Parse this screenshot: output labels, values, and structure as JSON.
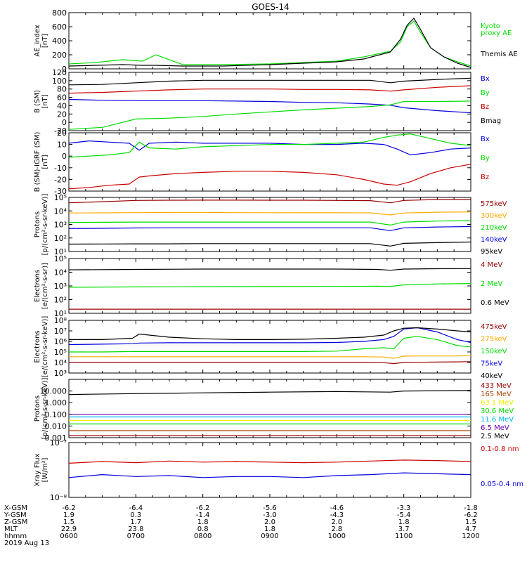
{
  "title": "GOES-14",
  "colors": {
    "black": "#000000",
    "green": "#00dd00",
    "red": "#cc0000",
    "blue": "#0000dd",
    "darkred": "#990000",
    "orange": "#ffaa00",
    "yellow": "#eeee00",
    "cyan": "#00bbee",
    "purple": "#6600aa",
    "brown": "#aa4400"
  },
  "footer": {
    "rows": [
      {
        "label": "X-GSM",
        "values": [
          "-6.2",
          "-6.4",
          "-6.2",
          "-5.6",
          "-4.6",
          "-3.3",
          "-1.8"
        ]
      },
      {
        "label": "Y-GSM",
        "values": [
          "1.9",
          "0.3",
          "-1.4",
          "-3.0",
          "-4.3",
          "-5.4",
          "-6.2"
        ]
      },
      {
        "label": "Z-GSM",
        "values": [
          "1.5",
          "1.7",
          "1.8",
          "2.0",
          "2.0",
          "1.8",
          "1.5"
        ]
      },
      {
        "label": "MLT",
        "values": [
          "22.9",
          "23.8",
          "0.8",
          "1.8",
          "2.8",
          "3.7",
          "4.7"
        ]
      },
      {
        "label": "hhmm",
        "values": [
          "0600",
          "0700",
          "0800",
          "0900",
          "1000",
          "1100",
          "1200"
        ]
      }
    ],
    "date": "2019 Aug 13"
  },
  "chart_data": [
    {
      "type": "line",
      "id": "ae",
      "ylabel": [
        "AE_index",
        "[nT]"
      ],
      "ylim": [
        0,
        800
      ],
      "yscale": "linear",
      "yticks": [
        0,
        200,
        400,
        600,
        800
      ],
      "ytick_labels": [
        "0",
        "200",
        "400",
        "600",
        "800"
      ],
      "x": [
        6.0,
        6.4,
        6.8,
        7.1,
        7.3,
        7.7,
        8.3,
        9.0,
        9.5,
        10.0,
        10.4,
        10.8,
        10.95,
        11.05,
        11.15,
        11.25,
        11.4,
        11.6,
        11.8,
        12.0
      ],
      "series": [
        {
          "name": "Kyoto\nproxy AE",
          "legend": [
            "Kyoto",
            "proxy AE"
          ],
          "color": "#00dd00",
          "values": [
            70,
            90,
            130,
            110,
            200,
            60,
            60,
            70,
            90,
            110,
            170,
            250,
            380,
            600,
            680,
            520,
            300,
            170,
            100,
            40
          ]
        },
        {
          "name": "Themis AE",
          "legend": [
            "Themis AE"
          ],
          "color": "#000000",
          "values": [
            40,
            50,
            60,
            50,
            50,
            40,
            40,
            60,
            80,
            100,
            140,
            240,
            420,
            620,
            720,
            560,
            300,
            170,
            80,
            20
          ]
        }
      ]
    },
    {
      "type": "line",
      "id": "b_sm",
      "ylabel": [
        "B (SM)",
        "[nT]"
      ],
      "ylim": [
        -20,
        120
      ],
      "yscale": "linear",
      "yticks": [
        -20,
        0,
        20,
        40,
        60,
        80,
        100,
        120
      ],
      "ytick_labels": [
        "-20",
        "0",
        "20",
        "40",
        "60",
        "80",
        "100",
        "120"
      ],
      "x": [
        6.0,
        6.5,
        7.0,
        7.5,
        8.0,
        8.5,
        9.0,
        9.5,
        10.0,
        10.5,
        10.8,
        11.0,
        11.5,
        12.0
      ],
      "series": [
        {
          "name": "Bx",
          "legend": [
            "Bx"
          ],
          "color": "#0000dd",
          "values": [
            55,
            53,
            52,
            52,
            52,
            51,
            50,
            48,
            47,
            44,
            41,
            35,
            28,
            23
          ]
        },
        {
          "name": "By",
          "legend": [
            "By"
          ],
          "color": "#00dd00",
          "values": [
            -17,
            -12,
            8,
            10,
            14,
            20,
            25,
            30,
            34,
            38,
            42,
            50,
            50,
            51
          ]
        },
        {
          "name": "Bz",
          "legend": [
            "Bz"
          ],
          "color": "#cc0000",
          "values": [
            70,
            72,
            75,
            78,
            80,
            80,
            80,
            79,
            79,
            78,
            75,
            78,
            84,
            88
          ]
        },
        {
          "name": "Bmag",
          "legend": [
            "Bmag"
          ],
          "color": "#000000",
          "values": [
            90,
            91,
            95,
            99,
            101,
            101,
            101,
            101,
            101,
            101,
            95,
            99,
            103,
            106
          ]
        }
      ]
    },
    {
      "type": "line",
      "id": "b_igrf",
      "ylabel": [
        "B (SM)-IGRF (SM)",
        "[nT]"
      ],
      "ylim": [
        -30,
        20
      ],
      "yscale": "linear",
      "yticks": [
        -30,
        -20,
        -10,
        0,
        10,
        20
      ],
      "ytick_labels": [
        "-30",
        "-20",
        "-10",
        "0",
        "10",
        "20"
      ],
      "x": [
        6.0,
        6.3,
        6.6,
        6.9,
        7.05,
        7.2,
        7.6,
        8.0,
        8.5,
        9.0,
        9.5,
        10.0,
        10.4,
        10.7,
        10.9,
        11.1,
        11.4,
        11.7,
        12.0
      ],
      "series": [
        {
          "name": "Bx",
          "legend": [
            "Bx"
          ],
          "color": "#0000dd",
          "values": [
            11,
            13,
            12,
            11,
            5,
            11,
            12,
            11,
            11,
            11,
            10,
            10,
            11,
            10,
            6,
            1,
            3,
            6,
            7
          ]
        },
        {
          "name": "By",
          "legend": [
            "By"
          ],
          "color": "#00dd00",
          "values": [
            -1,
            0,
            1,
            3,
            12,
            7,
            6,
            8,
            9,
            10,
            10,
            11,
            12,
            16,
            18,
            19,
            15,
            11,
            9
          ]
        },
        {
          "name": "Bz",
          "legend": [
            "Bz"
          ],
          "color": "#cc0000",
          "values": [
            -28,
            -27,
            -25,
            -24,
            -18,
            -17,
            -15,
            -14,
            -13,
            -13,
            -14,
            -16,
            -20,
            -24,
            -25,
            -22,
            -15,
            -10,
            -7
          ]
        }
      ]
    },
    {
      "type": "line",
      "id": "protons_low",
      "ylabel": [
        "Protons",
        "[p/(cm²-s-sr-keV)]"
      ],
      "ylim": [
        10,
        100000
      ],
      "yscale": "log",
      "yticks": [
        10,
        100,
        1000,
        10000,
        100000
      ],
      "ytick_labels": [
        "10¹",
        "10²",
        "10³",
        "10⁴",
        "10⁵"
      ],
      "x": [
        6.0,
        6.5,
        7.0,
        7.5,
        8.0,
        8.5,
        9.0,
        9.5,
        10.0,
        10.5,
        10.8,
        11.0,
        11.5,
        12.0
      ],
      "series": [
        {
          "name": "575keV",
          "legend": [
            "575keV"
          ],
          "color": "#990000",
          "values": [
            40000,
            48000,
            60000,
            62000,
            63000,
            63000,
            62000,
            62000,
            60000,
            58000,
            40000,
            60000,
            70000,
            70000
          ]
        },
        {
          "name": "300keV",
          "legend": [
            "300keV"
          ],
          "color": "#ffaa00",
          "values": [
            7000,
            7200,
            7500,
            7600,
            7600,
            7500,
            7400,
            7300,
            7300,
            7200,
            5000,
            7000,
            8000,
            8500
          ]
        },
        {
          "name": "210keV",
          "legend": [
            "210keV"
          ],
          "color": "#00dd00",
          "values": [
            1400,
            1450,
            1500,
            1500,
            1500,
            1500,
            1500,
            1500,
            1500,
            1500,
            900,
            1500,
            1800,
            1900
          ]
        },
        {
          "name": "140keV",
          "legend": [
            "140keV"
          ],
          "color": "#0000dd",
          "values": [
            500,
            520,
            550,
            560,
            560,
            560,
            560,
            560,
            560,
            560,
            350,
            560,
            650,
            700
          ]
        },
        {
          "name": "95keV",
          "legend": [
            "95keV"
          ],
          "color": "#000000",
          "values": [
            35,
            36,
            37,
            37,
            38,
            38,
            38,
            38,
            38,
            38,
            25,
            40,
            45,
            50
          ]
        }
      ]
    },
    {
      "type": "line",
      "id": "electrons_mev",
      "ylabel": [
        "Electrons",
        "[e/(cm²-s-sr)]"
      ],
      "ylim": [
        10,
        100000
      ],
      "yscale": "log",
      "yticks": [
        10,
        100,
        1000,
        10000,
        100000
      ],
      "ytick_labels": [
        "10¹",
        "10²",
        "10³",
        "10⁴",
        "10⁵"
      ],
      "x": [
        6.0,
        7.0,
        8.0,
        9.0,
        10.0,
        10.6,
        10.8,
        11.0,
        11.5,
        12.0
      ],
      "series": [
        {
          "name": "4 MeV",
          "legend": [
            "4 MeV"
          ],
          "color": "#990000",
          "values": [
            20,
            20,
            20,
            20,
            20,
            20,
            20,
            20,
            20,
            20
          ]
        },
        {
          "name": "2 MeV",
          "legend": [
            "2 MeV"
          ],
          "color": "#00dd00",
          "values": [
            800,
            850,
            880,
            900,
            920,
            950,
            900,
            1200,
            1400,
            1500
          ]
        },
        {
          "name": "0.6 MeV",
          "legend": [
            "0.6 MeV"
          ],
          "color": "#000000",
          "values": [
            15000,
            16000,
            17000,
            17000,
            17000,
            16000,
            14000,
            17000,
            18000,
            18500
          ]
        }
      ]
    },
    {
      "type": "line",
      "id": "electrons_kev",
      "ylabel": [
        "Electrons",
        "[e/(cm²-s-sr-keV)]"
      ],
      "ylim": [
        1000,
        100000000
      ],
      "yscale": "log",
      "yticks": [
        1000,
        10000,
        100000,
        1000000,
        10000000,
        100000000
      ],
      "ytick_labels": [
        "10³",
        "10⁴",
        "10⁵",
        "10⁶",
        "10⁷",
        "10⁸"
      ],
      "x": [
        6.0,
        6.5,
        6.95,
        7.05,
        7.5,
        8.0,
        8.5,
        9.0,
        9.5,
        10.0,
        10.4,
        10.7,
        10.85,
        11.0,
        11.2,
        11.5,
        11.8,
        12.0
      ],
      "series": [
        {
          "name": "475keV",
          "legend": [
            "475keV"
          ],
          "color": "#990000",
          "values": [
            10000,
            10000,
            10000,
            10000,
            10000,
            10000,
            10000,
            10000,
            10000,
            10000,
            10000,
            9500,
            8000,
            10000,
            10500,
            11000,
            11500,
            12000
          ]
        },
        {
          "name": "275keV",
          "legend": [
            "275keV"
          ],
          "color": "#ffaa00",
          "values": [
            35000,
            35000,
            35000,
            35000,
            35000,
            35000,
            35000,
            35000,
            35000,
            35000,
            35000,
            33000,
            25000,
            40000,
            42000,
            42000,
            42000,
            45000
          ]
        },
        {
          "name": "150keV",
          "legend": [
            "150keV"
          ],
          "color": "#00dd00",
          "values": [
            100000,
            100000,
            110000,
            110000,
            110000,
            110000,
            110000,
            110000,
            110000,
            120000,
            200000,
            250000,
            200000,
            2000000,
            3000000,
            1500000,
            400000,
            300000
          ]
        },
        {
          "name": "75keV",
          "legend": [
            "75keV"
          ],
          "color": "#0000dd",
          "values": [
            500000,
            550000,
            600000,
            700000,
            750000,
            750000,
            750000,
            750000,
            750000,
            800000,
            1000000,
            1500000,
            3000000,
            15000000,
            20000000,
            8000000,
            1500000,
            800000
          ]
        },
        {
          "name": "40keV",
          "legend": [
            "40keV"
          ],
          "color": "#000000",
          "values": [
            1500000,
            1500000,
            2000000,
            5000000,
            2500000,
            1800000,
            1500000,
            1500000,
            1600000,
            2000000,
            2500000,
            4000000,
            10000000,
            18000000,
            20000000,
            15000000,
            10000000,
            8000000
          ]
        }
      ]
    },
    {
      "type": "line",
      "id": "protons_high",
      "ylabel": [
        "Protons",
        "[p/(cm²-s-sr-keV)]"
      ],
      "ylim": [
        0.001,
        100
      ],
      "yscale": "log",
      "yticks": [
        0.001,
        0.01,
        0.1,
        1,
        10
      ],
      "ytick_labels": [
        "0.001",
        "0.010",
        "0.100",
        "1.000",
        "10.000"
      ],
      "x": [
        6.0,
        7.0,
        8.0,
        9.0,
        10.0,
        10.8,
        11.0,
        12.0
      ],
      "series": [
        {
          "name": "433 MeV",
          "legend": [
            "433 MeV"
          ],
          "color": "#990000",
          "values": [
            0.0015,
            0.0015,
            0.0015,
            0.0015,
            0.0015,
            0.0015,
            0.0015,
            0.0015
          ]
        },
        {
          "name": "165 MeV",
          "legend": [
            "165 MeV"
          ],
          "color": "#aa4400",
          "values": [
            0.004,
            0.004,
            0.004,
            0.004,
            0.004,
            0.004,
            0.004,
            0.004
          ]
        },
        {
          "name": "63.1 MeV",
          "legend": [
            "63.1 MeV"
          ],
          "color": "#eeee00",
          "values": [
            0.03,
            0.03,
            0.03,
            0.03,
            0.03,
            0.03,
            0.03,
            0.03
          ]
        },
        {
          "name": "30.6 MeV",
          "legend": [
            "30.6 MeV"
          ],
          "color": "#00dd00",
          "values": [
            0.015,
            0.015,
            0.015,
            0.015,
            0.015,
            0.015,
            0.015,
            0.015
          ]
        },
        {
          "name": "11.6 MeV",
          "legend": [
            "11.6 MeV"
          ],
          "color": "#00bbee",
          "values": [
            0.06,
            0.06,
            0.06,
            0.06,
            0.06,
            0.06,
            0.06,
            0.06
          ]
        },
        {
          "name": "6.5 MeV",
          "legend": [
            "6.5 MeV"
          ],
          "color": "#6600aa",
          "values": [
            0.1,
            0.1,
            0.1,
            0.1,
            0.1,
            0.1,
            0.1,
            0.1
          ]
        },
        {
          "name": "2.5 MeV",
          "legend": [
            "2.5 MeV"
          ],
          "color": "#000000",
          "values": [
            5,
            6,
            7,
            8,
            9,
            8,
            10,
            11
          ]
        }
      ]
    },
    {
      "type": "line",
      "id": "xray",
      "ylabel": [
        "Xray Flux",
        "[W/m²]"
      ],
      "ylim": [
        1e-08,
        1e-07
      ],
      "yscale": "log",
      "yticks": [
        1e-08,
        1e-07
      ],
      "ytick_labels": [
        "10⁻⁸",
        "10⁻⁷"
      ],
      "x": [
        6.0,
        6.5,
        7.0,
        7.5,
        8.0,
        8.5,
        9.0,
        9.5,
        10.0,
        10.5,
        11.0,
        11.5,
        12.0
      ],
      "series": [
        {
          "name": "0.1-0.8 nm",
          "legend": [
            "0.1-0.8 nm"
          ],
          "color": "#cc0000",
          "values": [
            4.2e-08,
            4.5e-08,
            4.3e-08,
            4.6e-08,
            4.4e-08,
            4.5e-08,
            4.4e-08,
            4.3e-08,
            4.4e-08,
            4.6e-08,
            4.8e-08,
            4.7e-08,
            4.5e-08
          ]
        },
        {
          "name": "0.05-0.4 nm",
          "legend": [
            "0.05-0.4 nm"
          ],
          "color": "#0000dd",
          "values": [
            2.3e-08,
            2.6e-08,
            2.4e-08,
            2.5e-08,
            2.3e-08,
            2.4e-08,
            2.4e-08,
            2.3e-08,
            2.5e-08,
            2.6e-08,
            2.8e-08,
            2.7e-08,
            2.6e-08
          ]
        }
      ]
    }
  ]
}
